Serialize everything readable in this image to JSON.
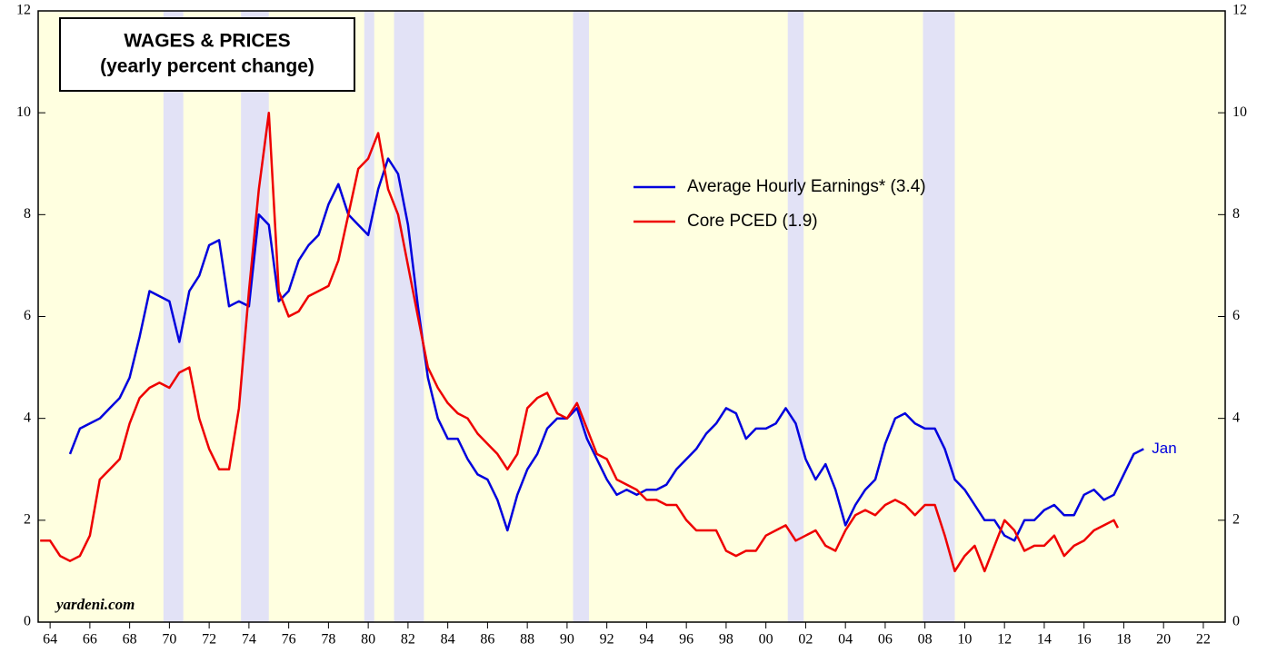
{
  "chart_data": {
    "type": "line",
    "title": "WAGES & PRICES",
    "subtitle": "(yearly percent change)",
    "source": "yardeni.com",
    "annotations": [
      {
        "text": "Jan",
        "series": 0
      }
    ],
    "xlim": [
      1963.4,
      2023.1
    ],
    "ylim": [
      0,
      12
    ],
    "yticks": [
      0,
      2,
      4,
      6,
      8,
      10,
      12
    ],
    "xticks": [
      {
        "value": 1964,
        "label": "64"
      },
      {
        "value": 1966,
        "label": "66"
      },
      {
        "value": 1968,
        "label": "68"
      },
      {
        "value": 1970,
        "label": "70"
      },
      {
        "value": 1972,
        "label": "72"
      },
      {
        "value": 1974,
        "label": "74"
      },
      {
        "value": 1976,
        "label": "76"
      },
      {
        "value": 1978,
        "label": "78"
      },
      {
        "value": 1980,
        "label": "80"
      },
      {
        "value": 1982,
        "label": "82"
      },
      {
        "value": 1984,
        "label": "84"
      },
      {
        "value": 1986,
        "label": "86"
      },
      {
        "value": 1988,
        "label": "88"
      },
      {
        "value": 1990,
        "label": "90"
      },
      {
        "value": 1992,
        "label": "92"
      },
      {
        "value": 1994,
        "label": "94"
      },
      {
        "value": 1996,
        "label": "96"
      },
      {
        "value": 1998,
        "label": "98"
      },
      {
        "value": 2000,
        "label": "00"
      },
      {
        "value": 2002,
        "label": "02"
      },
      {
        "value": 2004,
        "label": "04"
      },
      {
        "value": 2006,
        "label": "06"
      },
      {
        "value": 2008,
        "label": "08"
      },
      {
        "value": 2010,
        "label": "10"
      },
      {
        "value": 2012,
        "label": "12"
      },
      {
        "value": 2014,
        "label": "14"
      },
      {
        "value": 2016,
        "label": "16"
      },
      {
        "value": 2018,
        "label": "18"
      },
      {
        "value": 2020,
        "label": "20"
      },
      {
        "value": 2022,
        "label": "22"
      }
    ],
    "shaded_periods": [
      [
        1969.7,
        1970.7
      ],
      [
        1973.6,
        1975.0
      ],
      [
        1979.8,
        1980.3
      ],
      [
        1981.3,
        1982.8
      ],
      [
        1990.3,
        1991.1
      ],
      [
        2001.1,
        2001.9
      ],
      [
        2007.9,
        2009.5
      ]
    ],
    "shade_color": "#e2e2f6",
    "background_color": "#ffffe0",
    "series": [
      {
        "name": "Average Hourly Earnings* (3.4)",
        "color": "#0000dd",
        "x": [
          1965.0,
          1965.5,
          1966.0,
          1966.5,
          1967.0,
          1967.5,
          1968.0,
          1968.5,
          1969.0,
          1969.5,
          1970.0,
          1970.5,
          1971.0,
          1971.5,
          1972.0,
          1972.5,
          1973.0,
          1973.5,
          1974.0,
          1974.5,
          1975.0,
          1975.5,
          1976.0,
          1976.5,
          1977.0,
          1977.5,
          1978.0,
          1978.5,
          1979.0,
          1979.5,
          1980.0,
          1980.5,
          1981.0,
          1981.5,
          1982.0,
          1982.5,
          1983.0,
          1983.5,
          1984.0,
          1984.5,
          1985.0,
          1985.5,
          1986.0,
          1986.5,
          1987.0,
          1987.5,
          1988.0,
          1988.5,
          1989.0,
          1989.5,
          1990.0,
          1990.5,
          1991.0,
          1991.5,
          1992.0,
          1992.5,
          1993.0,
          1993.5,
          1994.0,
          1994.5,
          1995.0,
          1995.5,
          1996.0,
          1996.5,
          1997.0,
          1997.5,
          1998.0,
          1998.5,
          1999.0,
          1999.5,
          2000.0,
          2000.5,
          2001.0,
          2001.5,
          2002.0,
          2002.5,
          2003.0,
          2003.5,
          2004.0,
          2004.5,
          2005.0,
          2005.5,
          2006.0,
          2006.5,
          2007.0,
          2007.5,
          2008.0,
          2008.5,
          2009.0,
          2009.5,
          2010.0,
          2010.5,
          2011.0,
          2011.5,
          2012.0,
          2012.5,
          2013.0,
          2013.5,
          2014.0,
          2014.5,
          2015.0,
          2015.5,
          2016.0,
          2016.5,
          2017.0,
          2017.5,
          2018.0,
          2018.5,
          2019.0
        ],
        "values": [
          3.3,
          3.8,
          3.9,
          4.0,
          4.2,
          4.4,
          4.8,
          5.6,
          6.5,
          6.4,
          6.3,
          5.5,
          6.5,
          6.8,
          7.4,
          7.5,
          6.2,
          6.3,
          6.2,
          8.0,
          7.8,
          6.3,
          6.5,
          7.1,
          7.4,
          7.6,
          8.2,
          8.6,
          8.0,
          7.8,
          7.6,
          8.5,
          9.1,
          8.8,
          7.8,
          6.2,
          4.8,
          4.0,
          3.6,
          3.6,
          3.2,
          2.9,
          2.8,
          2.4,
          1.8,
          2.5,
          3.0,
          3.3,
          3.8,
          4.0,
          4.0,
          4.2,
          3.6,
          3.2,
          2.8,
          2.5,
          2.6,
          2.5,
          2.6,
          2.6,
          2.7,
          3.0,
          3.2,
          3.4,
          3.7,
          3.9,
          4.2,
          4.1,
          3.6,
          3.8,
          3.8,
          3.9,
          4.2,
          3.9,
          3.2,
          2.8,
          3.1,
          2.6,
          1.9,
          2.3,
          2.6,
          2.8,
          3.5,
          4.0,
          4.1,
          3.9,
          3.8,
          3.8,
          3.4,
          2.8,
          2.6,
          2.3,
          2.0,
          2.0,
          1.7,
          1.6,
          2.0,
          2.0,
          2.2,
          2.3,
          2.1,
          2.1,
          2.5,
          2.6,
          2.4,
          2.5,
          2.9,
          3.3,
          3.4
        ]
      },
      {
        "name": "Core PCED (1.9)",
        "color": "#ee0000",
        "x": [
          1963.5,
          1964.0,
          1964.5,
          1965.0,
          1965.5,
          1966.0,
          1966.5,
          1967.0,
          1967.5,
          1968.0,
          1968.5,
          1969.0,
          1969.5,
          1970.0,
          1970.5,
          1971.0,
          1971.5,
          1972.0,
          1972.5,
          1973.0,
          1973.5,
          1974.0,
          1974.5,
          1975.0,
          1975.5,
          1976.0,
          1976.5,
          1977.0,
          1977.5,
          1978.0,
          1978.5,
          1979.0,
          1979.5,
          1980.0,
          1980.5,
          1981.0,
          1981.5,
          1982.0,
          1982.5,
          1983.0,
          1983.5,
          1984.0,
          1984.5,
          1985.0,
          1985.5,
          1986.0,
          1986.5,
          1987.0,
          1987.5,
          1988.0,
          1988.5,
          1989.0,
          1989.5,
          1990.0,
          1990.5,
          1991.0,
          1991.5,
          1992.0,
          1992.5,
          1993.0,
          1993.5,
          1994.0,
          1994.5,
          1995.0,
          1995.5,
          1996.0,
          1996.5,
          1997.0,
          1997.5,
          1998.0,
          1998.5,
          1999.0,
          1999.5,
          2000.0,
          2000.5,
          2001.0,
          2001.5,
          2002.0,
          2002.5,
          2003.0,
          2003.5,
          2004.0,
          2004.5,
          2005.0,
          2005.5,
          2006.0,
          2006.5,
          2007.0,
          2007.5,
          2008.0,
          2008.5,
          2009.0,
          2009.5,
          2010.0,
          2010.5,
          2011.0,
          2011.5,
          2012.0,
          2012.5,
          2013.0,
          2013.5,
          2014.0,
          2014.5,
          2015.0,
          2015.5,
          2016.0,
          2016.5,
          2017.0,
          2017.5,
          2017.7
        ],
        "values": [
          1.6,
          1.6,
          1.3,
          1.2,
          1.3,
          1.7,
          2.8,
          3.0,
          3.2,
          3.9,
          4.4,
          4.6,
          4.7,
          4.6,
          4.9,
          5.0,
          4.0,
          3.4,
          3.0,
          3.0,
          4.2,
          6.5,
          8.5,
          10.0,
          6.5,
          6.0,
          6.1,
          6.4,
          6.5,
          6.6,
          7.1,
          8.0,
          8.9,
          9.1,
          9.6,
          8.5,
          8.0,
          7.0,
          6.0,
          5.0,
          4.6,
          4.3,
          4.1,
          4.0,
          3.7,
          3.5,
          3.3,
          3.0,
          3.3,
          4.2,
          4.4,
          4.5,
          4.1,
          4.0,
          4.3,
          3.8,
          3.3,
          3.2,
          2.8,
          2.7,
          2.6,
          2.4,
          2.4,
          2.3,
          2.3,
          2.0,
          1.8,
          1.8,
          1.8,
          1.4,
          1.3,
          1.4,
          1.4,
          1.7,
          1.8,
          1.9,
          1.6,
          1.7,
          1.8,
          1.5,
          1.4,
          1.8,
          2.1,
          2.2,
          2.1,
          2.3,
          2.4,
          2.3,
          2.1,
          2.3,
          2.3,
          1.7,
          1.0,
          1.3,
          1.5,
          1.0,
          1.5,
          2.0,
          1.8,
          1.4,
          1.5,
          1.5,
          1.7,
          1.3,
          1.5,
          1.6,
          1.8,
          1.9,
          2.0,
          1.85
        ]
      }
    ]
  }
}
